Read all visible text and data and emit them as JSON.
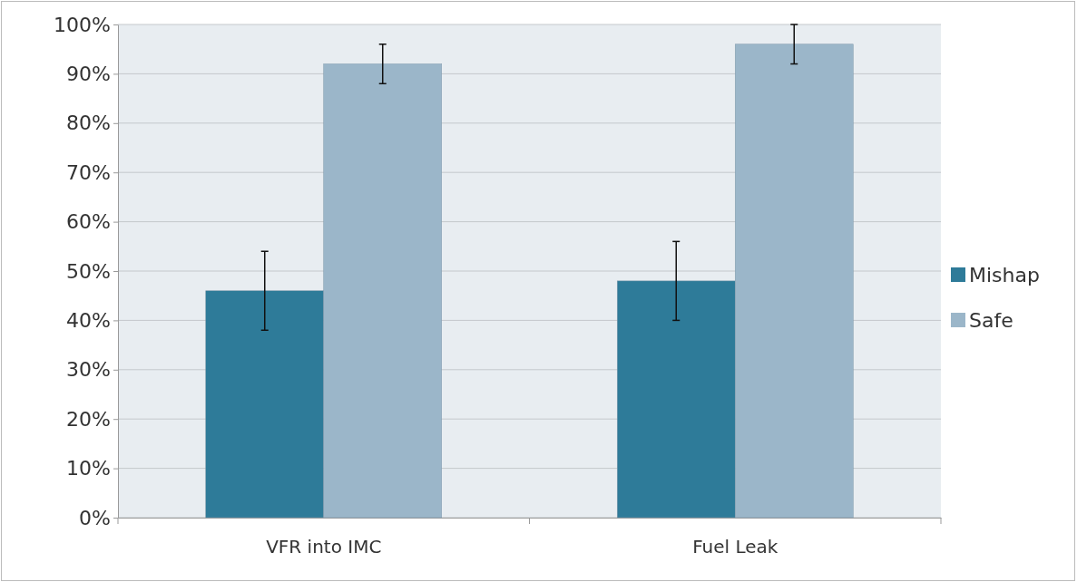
{
  "chart_data": {
    "type": "bar",
    "categories": [
      "VFR into IMC",
      "Fuel Leak"
    ],
    "series": [
      {
        "name": "Mishap",
        "color": "#2e7b99",
        "values": [
          46,
          48
        ],
        "errors": [
          8,
          8
        ]
      },
      {
        "name": "Safe",
        "color": "#9bb6c9",
        "values": [
          92,
          96
        ],
        "errors": [
          4,
          4
        ]
      }
    ],
    "ylim": [
      0,
      100
    ],
    "yticks": [
      {
        "value": 0,
        "label": "0%"
      },
      {
        "value": 10,
        "label": "10%"
      },
      {
        "value": 20,
        "label": "20%"
      },
      {
        "value": 30,
        "label": "30%"
      },
      {
        "value": 40,
        "label": "40%"
      },
      {
        "value": 50,
        "label": "50%"
      },
      {
        "value": 60,
        "label": "60%"
      },
      {
        "value": 70,
        "label": "70%"
      },
      {
        "value": 80,
        "label": "80%"
      },
      {
        "value": 90,
        "label": "90%"
      },
      {
        "value": 100,
        "label": "100%"
      }
    ],
    "grid": "y",
    "legend": "right"
  }
}
